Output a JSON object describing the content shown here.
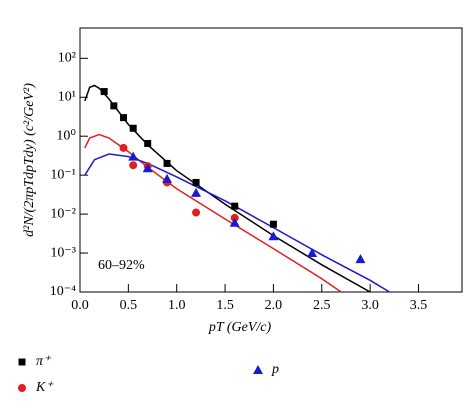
{
  "chart_data": {
    "type": "scatter",
    "x_label": "pT (GeV/c)",
    "y_label": "d²N/(2πpTdpTdy) (c²/GeV²)",
    "annotation": "60–92%",
    "xlim": [
      0,
      3.95
    ],
    "xticks": [
      {
        "value": 0,
        "label": "0.0"
      },
      0.5,
      {
        "value": 1,
        "label": "1.0"
      },
      1.5,
      {
        "value": 2,
        "label": "2.0"
      },
      2.5,
      {
        "value": 3,
        "label": "3.0"
      },
      3.5
    ],
    "ylim": [
      0.0001,
      600
    ],
    "yscale": "log",
    "yticks": [
      {
        "value": 0.0001,
        "label": "10⁻⁴"
      },
      {
        "value": 0.001,
        "label": "10⁻³"
      },
      {
        "value": 0.01,
        "label": "10⁻²"
      },
      {
        "value": 0.1,
        "label": "10⁻¹"
      },
      {
        "value": 1,
        "label": "10⁰"
      },
      {
        "value": 10,
        "label": "10¹"
      },
      {
        "value": 100,
        "label": "10²"
      }
    ],
    "series": [
      {
        "name": "π⁺",
        "color": "#000000",
        "marker": "square",
        "x": [
          0.25,
          0.35,
          0.45,
          0.55,
          0.7,
          0.9,
          1.2,
          1.6,
          2.0
        ],
        "values": [
          14,
          6,
          3,
          1.6,
          0.65,
          0.2,
          0.065,
          0.016,
          0.0055
        ],
        "fit": {
          "x": [
            0.05,
            0.1,
            0.15,
            0.2,
            0.3,
            0.5,
            0.7,
            1.0,
            1.5,
            2.0,
            2.5,
            3.0
          ],
          "values": [
            8,
            18,
            20,
            17,
            9,
            2,
            0.6,
            0.13,
            0.018,
            0.0028,
            0.0005,
            0.0001
          ]
        }
      },
      {
        "name": "K⁺",
        "color": "#e02020",
        "marker": "circle",
        "x": [
          0.45,
          0.55,
          0.7,
          0.9,
          1.2,
          1.6
        ],
        "values": [
          0.5,
          0.18,
          0.17,
          0.065,
          0.011,
          0.008
        ],
        "fit": {
          "x": [
            0.05,
            0.1,
            0.2,
            0.3,
            0.5,
            0.7,
            1.0,
            1.5,
            2.0,
            2.5,
            2.7
          ],
          "values": [
            0.5,
            0.9,
            1.1,
            0.9,
            0.4,
            0.16,
            0.045,
            0.0075,
            0.0013,
            0.00022,
            0.0001
          ]
        }
      },
      {
        "name": "p",
        "color": "#1a1ad0",
        "marker": "triangle",
        "x": [
          0.55,
          0.7,
          0.9,
          1.2,
          1.6,
          2.0,
          2.4,
          2.9
        ],
        "values": [
          0.3,
          0.15,
          0.08,
          0.035,
          0.006,
          0.0027,
          0.001,
          0.0007
        ],
        "fit": {
          "x": [
            0.05,
            0.15,
            0.3,
            0.5,
            0.7,
            1.0,
            1.5,
            2.0,
            2.5,
            3.0,
            3.2
          ],
          "values": [
            0.1,
            0.25,
            0.35,
            0.3,
            0.2,
            0.09,
            0.022,
            0.0045,
            0.0009,
            0.0002,
            0.0001
          ]
        }
      }
    ]
  }
}
